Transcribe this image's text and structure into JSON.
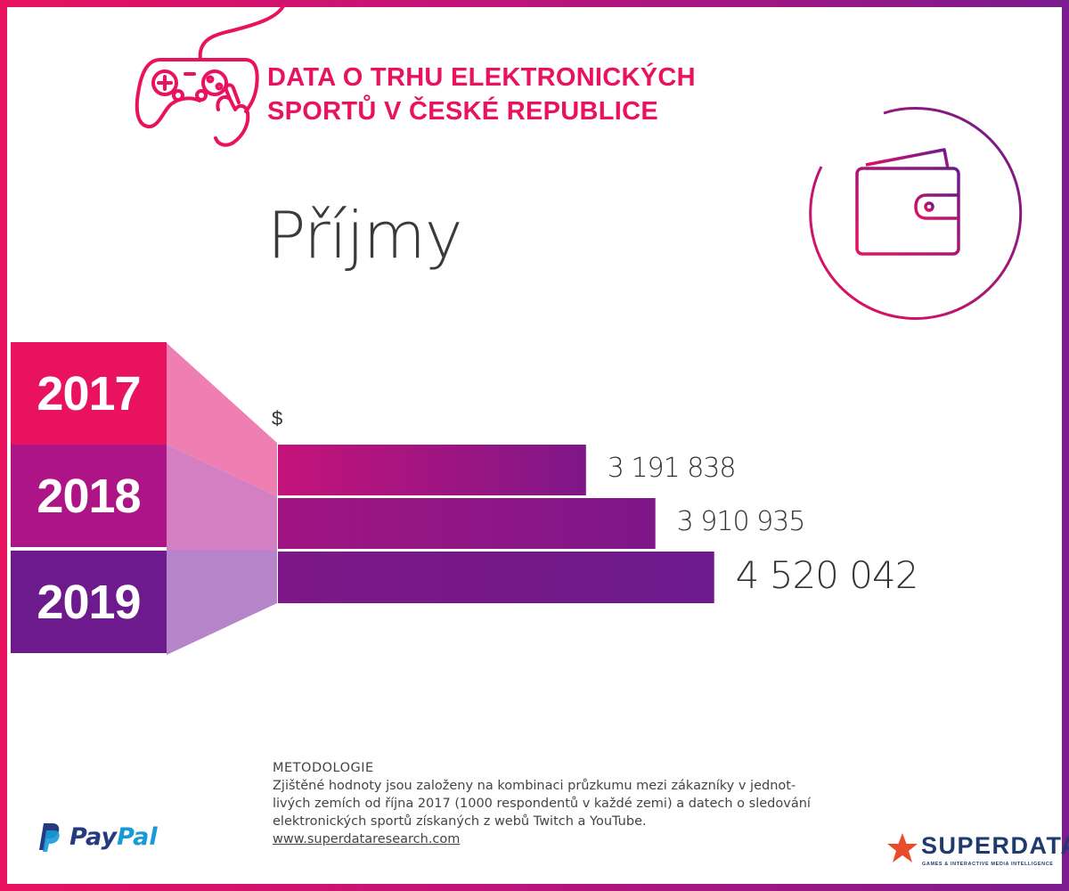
{
  "header": {
    "title_line1": "DATA O TRHU ELEKTRONICKÝCH",
    "title_line2": "SPORTŮ V ČESKÉ REPUBLICE",
    "controller_icon": "gamepad-icon",
    "wallet_icon": "wallet-icon"
  },
  "heading": "Příjmy",
  "colors": {
    "brand_pink": "#e8125f",
    "brand_purple": "#6c1a8c",
    "mid_magenta": "#ad1485"
  },
  "chart_data": {
    "type": "bar",
    "orientation": "horizontal",
    "title": "Příjmy",
    "unit": "$",
    "categories": [
      "2017",
      "2018",
      "2019"
    ],
    "values": [
      3191838,
      3910935,
      4520042
    ],
    "value_labels": [
      "3 191 838",
      "3 910 935",
      "4 520 042"
    ],
    "xlim": [
      0,
      7200000
    ],
    "xlabel": "",
    "ylabel": ""
  },
  "methodology": {
    "heading": "METODOLOGIE",
    "line1": "Zjištěné hodnoty jsou založeny na kombinaci průzkumu mezi zákazníky v jednot-",
    "line2": "livých zemích od října 2017 (1000 respondentů v každé zemi) a datech o sledování",
    "line3": "elektronických sportů získaných z webů Twitch a YouTube.",
    "link": "www.superdataresearch.com"
  },
  "logos": {
    "paypal_pay": "Pay",
    "paypal_pal": "Pal",
    "superdata_name": "SUPERDATA",
    "superdata_tagline": "GAMES & INTERACTIVE MEDIA INTELLIGENCE"
  }
}
